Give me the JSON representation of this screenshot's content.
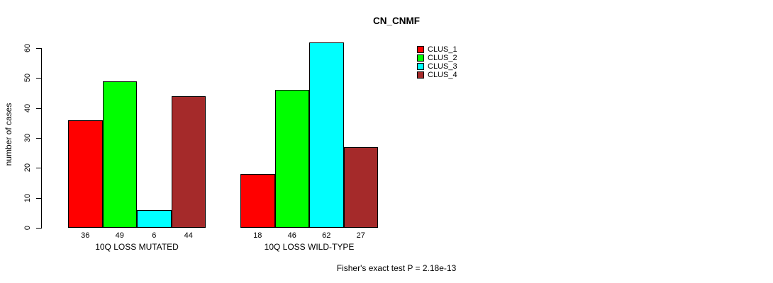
{
  "chart_data": {
    "type": "bar",
    "title": "CN_CNMF",
    "ylabel": "number of cases",
    "ylim": [
      0,
      60
    ],
    "yticks": [
      0,
      10,
      20,
      30,
      40,
      50,
      60
    ],
    "grid": false,
    "legend_position": "top-right",
    "categories": [
      "10Q LOSS MUTATED",
      "10Q LOSS WILD-TYPE"
    ],
    "series": [
      {
        "name": "CLUS_1",
        "color": "#ff0000",
        "values": [
          36,
          18
        ]
      },
      {
        "name": "CLUS_2",
        "color": "#00ff00",
        "values": [
          49,
          46
        ]
      },
      {
        "name": "CLUS_3",
        "color": "#00ffff",
        "values": [
          6,
          62
        ]
      },
      {
        "name": "CLUS_4",
        "color": "#a52a2a",
        "values": [
          44,
          27
        ]
      }
    ],
    "bar_labels_shown": true,
    "annotation": "Fisher's exact test P = 2.18e-13",
    "axis_color": "#000000",
    "background_color": "#ffffff"
  }
}
